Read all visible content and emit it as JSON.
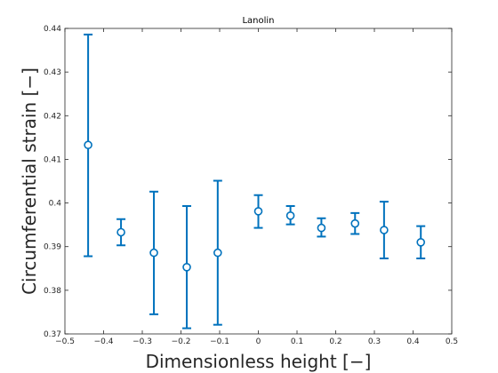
{
  "chart_data": {
    "type": "scatter",
    "title": "Lanolin",
    "xlabel": "Dimensionless height [−]",
    "ylabel": "Circumferential strain [−]",
    "xlim": [
      -0.5,
      0.5
    ],
    "ylim": [
      0.37,
      0.44
    ],
    "xticks": [
      "−0.5",
      "−0.4",
      "−0.3",
      "−0.2",
      "−0.1",
      "0",
      "0.1",
      "0.2",
      "0.3",
      "0.4",
      "0.5"
    ],
    "yticks": [
      "0.37",
      "0.38",
      "0.39",
      "0.4",
      "0.41",
      "0.42",
      "0.43",
      "0.44"
    ],
    "grid": false,
    "marker": "circle",
    "color": "#0072BD",
    "points": [
      {
        "x": -0.44,
        "y": 0.4133,
        "lower": 0.3878,
        "upper": 0.4386
      },
      {
        "x": -0.355,
        "y": 0.3933,
        "lower": 0.3903,
        "upper": 0.3963
      },
      {
        "x": -0.27,
        "y": 0.3886,
        "lower": 0.3745,
        "upper": 0.4026
      },
      {
        "x": -0.185,
        "y": 0.3853,
        "lower": 0.3713,
        "upper": 0.3993
      },
      {
        "x": -0.105,
        "y": 0.3886,
        "lower": 0.3721,
        "upper": 0.4051
      },
      {
        "x": 0.0,
        "y": 0.3981,
        "lower": 0.3943,
        "upper": 0.4018
      },
      {
        "x": 0.083,
        "y": 0.3971,
        "lower": 0.3951,
        "upper": 0.3993
      },
      {
        "x": 0.163,
        "y": 0.3943,
        "lower": 0.3923,
        "upper": 0.3965
      },
      {
        "x": 0.25,
        "y": 0.3953,
        "lower": 0.3929,
        "upper": 0.3977
      },
      {
        "x": 0.325,
        "y": 0.3938,
        "lower": 0.3873,
        "upper": 0.4003
      },
      {
        "x": 0.42,
        "y": 0.391,
        "lower": 0.3873,
        "upper": 0.3947
      }
    ]
  }
}
